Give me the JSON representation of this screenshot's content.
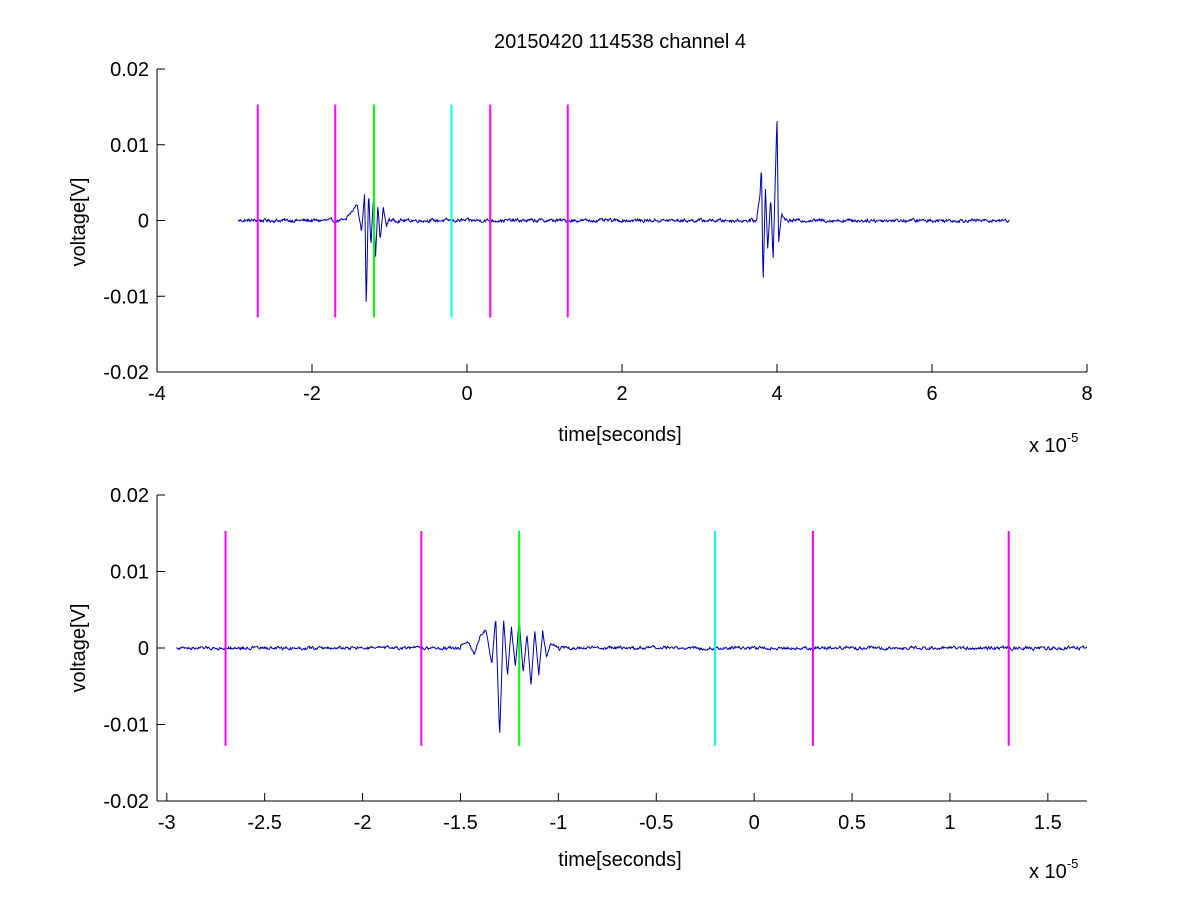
{
  "title": "20150420 114538 channel 4",
  "chart_data": [
    {
      "type": "line",
      "xlabel": "time[seconds]",
      "ylabel": "voltage[V]",
      "x_multiplier_prefix": "x 10",
      "x_multiplier_exponent": "-5",
      "xlim": [
        -4,
        8
      ],
      "ylim": [
        -0.02,
        0.02
      ],
      "xticks": [
        -4,
        -2,
        0,
        2,
        4,
        6,
        8
      ],
      "xtick_labels": [
        "-4",
        "-2",
        "0",
        "2",
        "4",
        "6",
        "8"
      ],
      "yticks": [
        -0.02,
        -0.01,
        0,
        0.01,
        0.02
      ],
      "ytick_labels": [
        "-0.02",
        "-0.01",
        "0",
        "0.01",
        "0.02"
      ],
      "grid": false,
      "signal": {
        "color": "#0000aa",
        "x_range": [
          -2.95,
          7.0
        ],
        "baseline_noise": 0.0004,
        "bursts": [
          {
            "x": [
              -1.55,
              -1.48,
              -1.42,
              -1.36,
              -1.32,
              -1.3,
              -1.27,
              -1.24,
              -1.21,
              -1.18,
              -1.15,
              -1.12,
              -1.08,
              -1.04,
              -1.0
            ],
            "y": [
              0.0005,
              0.0012,
              0.0022,
              -0.0015,
              0.0038,
              -0.0116,
              0.0041,
              -0.0035,
              0.0028,
              -0.0049,
              0.0021,
              -0.0027,
              0.0018,
              -0.0008,
              0.0004
            ]
          },
          {
            "x": [
              3.74,
              3.78,
              3.8,
              3.82,
              3.85,
              3.88,
              3.92,
              3.95,
              3.97,
              4.0,
              4.02,
              4.06,
              4.1
            ],
            "y": [
              0.0004,
              0.0034,
              0.0074,
              -0.0088,
              0.0045,
              -0.0038,
              0.003,
              -0.0052,
              0.0024,
              0.0138,
              -0.0029,
              0.0008,
              0.0003
            ]
          }
        ]
      },
      "markers": [
        {
          "x": -2.7,
          "color": "#ff00ff"
        },
        {
          "x": -1.7,
          "color": "#ff00ff"
        },
        {
          "x": -1.2,
          "color": "#00ff00"
        },
        {
          "x": -0.2,
          "color": "#00ffff"
        },
        {
          "x": 0.3,
          "color": "#ff00ff"
        },
        {
          "x": 1.3,
          "color": "#ff00ff"
        }
      ],
      "marker_y_range": [
        -0.0128,
        0.0153
      ]
    },
    {
      "type": "line",
      "xlabel": "time[seconds]",
      "ylabel": "voltage[V]",
      "x_multiplier_prefix": "x 10",
      "x_multiplier_exponent": "-5",
      "xlim": [
        -3.05,
        1.7
      ],
      "ylim": [
        -0.02,
        0.02
      ],
      "xticks": [
        -3,
        -2.5,
        -2,
        -1.5,
        -1,
        -0.5,
        0,
        0.5,
        1,
        1.5
      ],
      "xtick_labels": [
        "-3",
        "-2.5",
        "-2",
        "-1.5",
        "-1",
        "-0.5",
        "0",
        "0.5",
        "1",
        "1.5"
      ],
      "yticks": [
        -0.02,
        -0.01,
        0,
        0.01,
        0.02
      ],
      "ytick_labels": [
        "-0.02",
        "-0.01",
        "0",
        "0.01",
        "0.02"
      ],
      "grid": false,
      "signal": {
        "color": "#0000aa",
        "x_range": [
          -2.95,
          1.7
        ],
        "baseline_noise": 0.0004,
        "bursts": [
          {
            "x": [
              -1.5,
              -1.46,
              -1.43,
              -1.4,
              -1.37,
              -1.34,
              -1.32,
              -1.3,
              -1.28,
              -1.26,
              -1.24,
              -1.22,
              -1.2,
              -1.18,
              -1.16,
              -1.14,
              -1.12,
              -1.1,
              -1.08,
              -1.06,
              -1.04,
              -1.0
            ],
            "y": [
              0.0004,
              0.0008,
              -0.0008,
              0.0015,
              0.0024,
              -0.0022,
              0.0041,
              -0.0116,
              0.0039,
              -0.0037,
              0.0028,
              -0.0025,
              0.0037,
              -0.0032,
              0.0018,
              -0.0049,
              0.0023,
              -0.0035,
              0.0022,
              -0.0012,
              0.0006,
              0.0001
            ]
          }
        ]
      },
      "markers": [
        {
          "x": -2.7,
          "color": "#ff00ff"
        },
        {
          "x": -1.7,
          "color": "#ff00ff"
        },
        {
          "x": -1.2,
          "color": "#00ff00"
        },
        {
          "x": -0.2,
          "color": "#00ffff"
        },
        {
          "x": 0.3,
          "color": "#ff00ff"
        },
        {
          "x": 1.3,
          "color": "#ff00ff"
        }
      ],
      "marker_y_range": [
        -0.0128,
        0.0153
      ]
    }
  ]
}
